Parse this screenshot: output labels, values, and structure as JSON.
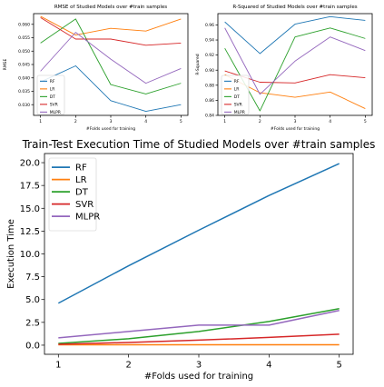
{
  "colors": {
    "RF": "#1f77b4",
    "LR": "#ff7f0e",
    "DT": "#2ca02c",
    "SVR": "#d62728",
    "MLPR": "#9467bd"
  },
  "chart_data": [
    {
      "type": "line",
      "title": "RMSE of Studied Models over #train samples",
      "xlabel": "#Folds used for training",
      "ylabel": "RMSE",
      "x": [
        1,
        2,
        3,
        4,
        5
      ],
      "xticks": [
        "1",
        "2",
        "3",
        "4",
        "5"
      ],
      "yticks": [
        "0.030",
        "0.035",
        "0.040",
        "0.045",
        "0.050",
        "0.055",
        "0.060"
      ],
      "ylim": [
        0.026,
        0.064
      ],
      "grid": false,
      "legend": "lower-left",
      "series": [
        {
          "name": "RF",
          "values": [
            0.0385,
            0.0445,
            0.0315,
            0.0275,
            0.03
          ]
        },
        {
          "name": "LR",
          "values": [
            0.063,
            0.056,
            0.0585,
            0.0575,
            0.062
          ]
        },
        {
          "name": "DT",
          "values": [
            0.053,
            0.062,
            0.0375,
            0.034,
            0.038
          ]
        },
        {
          "name": "SVR",
          "values": [
            0.0625,
            0.0545,
            0.0545,
            0.0522,
            0.053
          ]
        },
        {
          "name": "MLPR",
          "values": [
            0.0425,
            0.057,
            0.047,
            0.038,
            0.0435
          ]
        }
      ]
    },
    {
      "type": "line",
      "title": "R-Squared of Studied Models over #train samples",
      "xlabel": "#Folds used for training",
      "ylabel": "R-Squared",
      "x": [
        1,
        2,
        3,
        4,
        5
      ],
      "xticks": [
        "1",
        "2",
        "3",
        "4",
        "5"
      ],
      "yticks": [
        "0.84",
        "0.86",
        "0.88",
        "0.90",
        "0.92",
        "0.94",
        "0.96"
      ],
      "ylim": [
        0.84,
        0.975
      ],
      "grid": false,
      "legend": "lower-left",
      "series": [
        {
          "name": "RF",
          "values": [
            0.964,
            0.922,
            0.961,
            0.971,
            0.966
          ]
        },
        {
          "name": "LR",
          "values": [
            0.894,
            0.87,
            0.864,
            0.871,
            0.849
          ]
        },
        {
          "name": "DT",
          "values": [
            0.929,
            0.846,
            0.944,
            0.956,
            0.942
          ]
        },
        {
          "name": "SVR",
          "values": [
            0.899,
            0.884,
            0.883,
            0.894,
            0.89
          ]
        },
        {
          "name": "MLPR",
          "values": [
            0.956,
            0.868,
            0.912,
            0.944,
            0.926
          ]
        }
      ]
    },
    {
      "type": "line",
      "title": "Train-Test Execution Time of Studied Models over #train samples",
      "xlabel": "#Folds used for training",
      "ylabel": "Execution Time",
      "x": [
        1,
        2,
        3,
        4,
        5
      ],
      "xticks": [
        "1",
        "2",
        "3",
        "4",
        "5"
      ],
      "yticks": [
        "0.0",
        "2.5",
        "5.0",
        "7.5",
        "10.0",
        "12.5",
        "15.0",
        "17.5",
        "20.0"
      ],
      "ylim": [
        -1.0,
        21.0
      ],
      "grid": false,
      "legend": "upper-left",
      "series": [
        {
          "name": "RF",
          "values": [
            4.6,
            8.7,
            12.6,
            16.4,
            19.9
          ]
        },
        {
          "name": "LR",
          "values": [
            0.05,
            0.05,
            0.05,
            0.05,
            0.05
          ]
        },
        {
          "name": "DT",
          "values": [
            0.2,
            0.7,
            1.5,
            2.6,
            4.0
          ]
        },
        {
          "name": "SVR",
          "values": [
            0.1,
            0.3,
            0.55,
            0.85,
            1.2
          ]
        },
        {
          "name": "MLPR",
          "values": [
            0.8,
            1.5,
            2.2,
            2.2,
            3.8
          ]
        }
      ]
    }
  ]
}
